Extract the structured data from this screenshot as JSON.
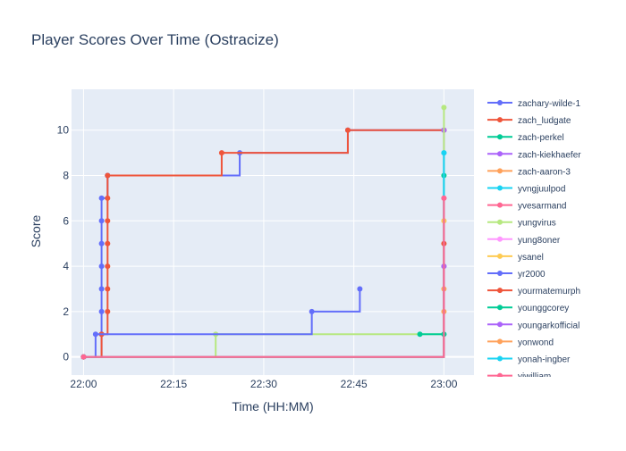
{
  "chart_data": {
    "type": "line",
    "line_shape": "step",
    "title": "Player Scores Over Time (Ostracize)",
    "xlabel": "Time (HH:MM)",
    "ylabel": "Score",
    "xlim": [
      "21:58",
      "23:05"
    ],
    "ylim": [
      -0.8,
      11.8
    ],
    "x_ticks": [
      {
        "value": "22:00",
        "label": "22:00"
      },
      {
        "value": "22:15",
        "label": "22:15"
      },
      {
        "value": "22:30",
        "label": "22:30"
      },
      {
        "value": "22:45",
        "label": "22:45"
      },
      {
        "value": "23:00",
        "label": "23:00"
      }
    ],
    "y_ticks": [
      {
        "value": 0,
        "label": "0"
      },
      {
        "value": 2,
        "label": "2"
      },
      {
        "value": 4,
        "label": "4"
      },
      {
        "value": 6,
        "label": "6"
      },
      {
        "value": 8,
        "label": "8"
      },
      {
        "value": 10,
        "label": "10"
      }
    ],
    "grid": true,
    "legend_position": "right",
    "colors": {
      "plot_bg": "#e5ecf6",
      "grid": "#ffffff",
      "text": "#2a3f5f",
      "palette": [
        "#636efa",
        "#ef553b",
        "#00cc96",
        "#ab63fa",
        "#ffa15a",
        "#19d3f3",
        "#ff6692",
        "#b6e880",
        "#ff97ff",
        "#fecb52"
      ]
    },
    "series": [
      {
        "name": "zachary-wilde-1",
        "color": "#636efa",
        "x": [
          "22:00",
          "22:03",
          "22:03",
          "22:03",
          "22:03",
          "22:03",
          "22:03",
          "22:03",
          "22:04",
          "22:04",
          "22:26",
          "22:44",
          "23:00"
        ],
        "y": [
          0,
          1,
          2,
          3,
          4,
          5,
          6,
          7,
          8,
          8,
          9,
          10,
          10
        ]
      },
      {
        "name": "zach_ludgate",
        "color": "#ef553b",
        "x": [
          "22:00",
          "22:03",
          "22:04",
          "22:04",
          "22:04",
          "22:04",
          "22:04",
          "22:04",
          "22:04",
          "22:23",
          "22:44",
          "23:00"
        ],
        "y": [
          0,
          1,
          2,
          3,
          4,
          5,
          6,
          7,
          8,
          9,
          10,
          10
        ]
      },
      {
        "name": "zach-perkel",
        "color": "#00cc96",
        "x": [
          "22:00",
          "23:00"
        ],
        "y": [
          0,
          8
        ]
      },
      {
        "name": "zach-kiekhaefer",
        "color": "#ab63fa",
        "x": [
          "22:00",
          "23:00"
        ],
        "y": [
          0,
          10
        ]
      },
      {
        "name": "zach-aaron-3",
        "color": "#ffa15a",
        "x": [
          "22:00",
          "23:00"
        ],
        "y": [
          0,
          3
        ]
      },
      {
        "name": "yvngjuulpod",
        "color": "#19d3f3",
        "x": [
          "22:00",
          "23:00"
        ],
        "y": [
          0,
          9
        ]
      },
      {
        "name": "yvesarmand",
        "color": "#ff6692",
        "x": [
          "22:00",
          "23:00"
        ],
        "y": [
          0,
          7
        ]
      },
      {
        "name": "yungvirus",
        "color": "#b6e880",
        "x": [
          "22:00",
          "22:22",
          "23:00",
          "23:00"
        ],
        "y": [
          0,
          1,
          4,
          11
        ]
      },
      {
        "name": "yung8oner",
        "color": "#ff97ff",
        "x": [
          "22:00",
          "23:00"
        ],
        "y": [
          0,
          6
        ]
      },
      {
        "name": "ysanel",
        "color": "#fecb52",
        "x": [
          "22:00",
          "23:00"
        ],
        "y": [
          0,
          6
        ]
      },
      {
        "name": "yr2000",
        "color": "#636efa",
        "x": [
          "22:00",
          "22:02",
          "22:38",
          "22:46"
        ],
        "y": [
          0,
          1,
          2,
          3
        ]
      },
      {
        "name": "yourmatemurph",
        "color": "#ef553b",
        "x": [
          "22:00",
          "23:00"
        ],
        "y": [
          0,
          5
        ]
      },
      {
        "name": "younggcorey",
        "color": "#00cc96",
        "x": [
          "22:56",
          "23:00"
        ],
        "y": [
          1,
          1
        ]
      },
      {
        "name": "youngarkofficial",
        "color": "#ab63fa",
        "x": [
          "22:00",
          "23:00"
        ],
        "y": [
          0,
          4
        ]
      },
      {
        "name": "yonwond",
        "color": "#ffa15a",
        "x": [
          "22:00",
          "23:00"
        ],
        "y": [
          0,
          2
        ]
      },
      {
        "name": "yonah-ingber",
        "color": "#19d3f3",
        "x": [
          "22:00",
          "23:00"
        ],
        "y": [
          0,
          9
        ]
      },
      {
        "name": "yiwilliam",
        "color": "#ff6692",
        "x": [
          "22:00",
          "23:00"
        ],
        "y": [
          0,
          7
        ]
      }
    ]
  }
}
